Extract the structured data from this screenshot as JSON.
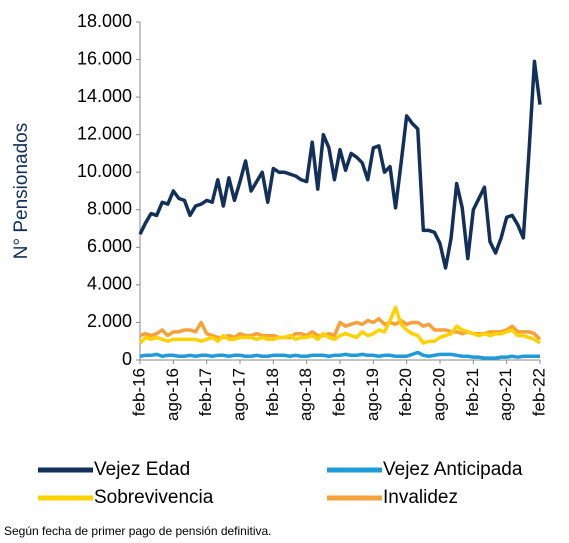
{
  "chart_data": {
    "type": "line",
    "ylabel": "N° Pensionados",
    "note": "Según fecha de primer pago de pensión definitiva.",
    "categories": [
      "feb-16",
      null,
      null,
      null,
      null,
      null,
      "ago-16",
      null,
      null,
      null,
      null,
      null,
      "feb-17",
      null,
      null,
      null,
      null,
      null,
      "ago-17",
      null,
      null,
      null,
      null,
      null,
      "feb-18",
      null,
      null,
      null,
      null,
      null,
      "ago-18",
      null,
      null,
      null,
      null,
      null,
      "feb-19",
      null,
      null,
      null,
      null,
      null,
      "ago-19",
      null,
      null,
      null,
      null,
      null,
      "feb-20",
      null,
      null,
      null,
      null,
      null,
      "ago-20",
      null,
      null,
      null,
      null,
      null,
      "feb-21",
      null,
      null,
      null,
      null,
      null,
      "ago-21",
      null,
      null,
      null,
      null,
      null,
      "feb-22"
    ],
    "ylim": [
      0,
      18000
    ],
    "yticks": [
      0,
      {
        "value": 2000,
        "label": "2.000"
      },
      {
        "value": 4000,
        "label": "4.000"
      },
      {
        "value": 6000,
        "label": "6.000"
      },
      {
        "value": 8000,
        "label": "8.000"
      },
      {
        "value": 10000,
        "label": "10.000"
      },
      {
        "value": 12000,
        "label": "12.000"
      },
      {
        "value": 14000,
        "label": "14.000"
      },
      {
        "value": 16000,
        "label": "16.000"
      },
      {
        "value": 18000,
        "label": "18.000"
      }
    ],
    "grid": false,
    "legend": "bottom",
    "series": [
      {
        "name": "Vejez Edad",
        "color": "#12305a",
        "values": [
          6700,
          7300,
          7800,
          7700,
          8400,
          8300,
          9000,
          8600,
          8500,
          7700,
          8200,
          8300,
          8500,
          8400,
          9600,
          8200,
          9700,
          8500,
          9500,
          10600,
          9000,
          9500,
          10000,
          8400,
          10200,
          10000,
          10000,
          9900,
          9800,
          9600,
          9500,
          11600,
          9100,
          12000,
          11300,
          9600,
          11200,
          10100,
          11000,
          10800,
          10500,
          9600,
          11300,
          11400,
          10000,
          10300,
          8100,
          10500,
          13000,
          12600,
          12300,
          6900,
          6900,
          6800,
          6200,
          4900,
          6500,
          9400,
          8100,
          5400,
          8000,
          8600,
          9200,
          6300,
          5700,
          6500,
          7600,
          7700,
          7200,
          6500,
          11000,
          15900,
          13600
        ]
      },
      {
        "name": "Vejez Anticipada",
        "color": "#1f9bd7",
        "values": [
          200,
          250,
          250,
          300,
          200,
          250,
          250,
          200,
          200,
          250,
          200,
          250,
          250,
          200,
          250,
          250,
          200,
          250,
          250,
          200,
          200,
          250,
          200,
          200,
          250,
          250,
          250,
          200,
          250,
          200,
          200,
          250,
          250,
          250,
          200,
          250,
          250,
          300,
          250,
          250,
          300,
          250,
          250,
          200,
          250,
          250,
          200,
          200,
          200,
          300,
          400,
          250,
          200,
          250,
          300,
          300,
          300,
          250,
          200,
          200,
          150,
          150,
          100,
          100,
          100,
          150,
          150,
          200,
          150,
          200,
          200,
          200,
          200
        ]
      },
      {
        "name": "Sobrevivencia",
        "color": "#ffd200",
        "values": [
          900,
          1200,
          1100,
          1200,
          1100,
          1000,
          1100,
          1100,
          1100,
          1100,
          1100,
          1000,
          1100,
          1200,
          1000,
          1300,
          1100,
          1100,
          1200,
          1200,
          1200,
          1100,
          1200,
          1100,
          1100,
          1200,
          1200,
          1300,
          1100,
          1200,
          1200,
          1300,
          1100,
          1400,
          1200,
          1100,
          1300,
          1400,
          1300,
          1200,
          1500,
          1300,
          1400,
          1600,
          1500,
          2100,
          2800,
          1900,
          1600,
          1400,
          1300,
          900,
          1000,
          1000,
          1200,
          1300,
          1400,
          1800,
          1600,
          1500,
          1400,
          1300,
          1400,
          1300,
          1400,
          1400,
          1500,
          1600,
          1300,
          1300,
          1200,
          1100,
          900
        ]
      },
      {
        "name": "Invalidez",
        "color": "#f7a13b",
        "values": [
          1300,
          1400,
          1300,
          1400,
          1600,
          1300,
          1500,
          1500,
          1600,
          1600,
          1500,
          2000,
          1400,
          1300,
          1200,
          1200,
          1300,
          1200,
          1400,
          1300,
          1300,
          1400,
          1300,
          1300,
          1300,
          1200,
          1200,
          1200,
          1400,
          1400,
          1300,
          1500,
          1300,
          1300,
          1400,
          1300,
          2000,
          1800,
          1900,
          2000,
          1900,
          2100,
          2000,
          2200,
          1900,
          2000,
          1900,
          2100,
          1900,
          2000,
          2000,
          1800,
          1900,
          1600,
          1600,
          1600,
          1500,
          1500,
          1400,
          1500,
          1400,
          1400,
          1400,
          1500,
          1500,
          1500,
          1600,
          1800,
          1500,
          1500,
          1500,
          1400,
          1100
        ]
      }
    ]
  }
}
